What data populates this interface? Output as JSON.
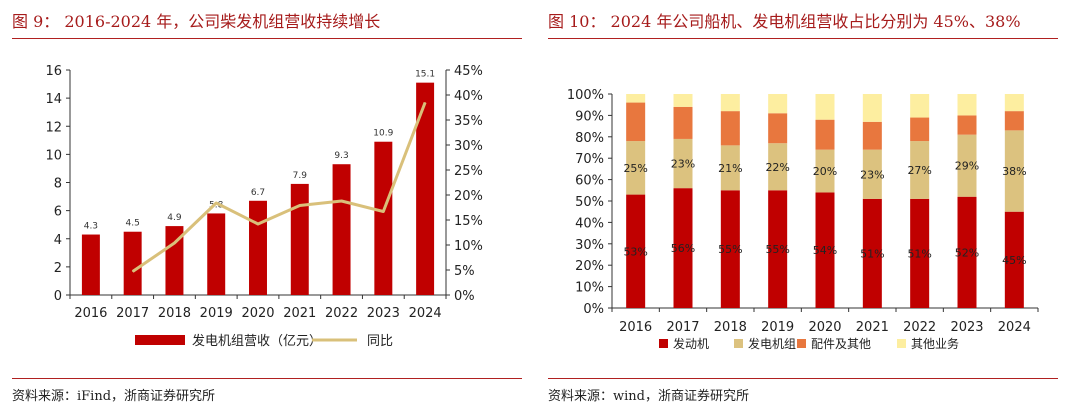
{
  "left_panel": {
    "title": "图 9： 2016-2024 年，公司柴发机组营收持续增长",
    "source": "资料来源：iFind，浙商证券研究所"
  },
  "right_panel": {
    "title": "图 10： 2024 年公司船机、发电机组营收占比分别为 45%、38%",
    "source": "资料来源：wind，浙商证券研究所"
  },
  "colors": {
    "accent": "#a61b1b",
    "bar_red": "#c00000",
    "line_tan": "#d9c07a",
    "seg_tan": "#dcc27f",
    "seg_orange": "#e8773e",
    "seg_yellow": "#fdeea0"
  },
  "chart_data": [
    {
      "type": "bar",
      "title": "2016-2024 年，公司柴发机组营收持续增长",
      "categories": [
        "2016",
        "2017",
        "2018",
        "2019",
        "2020",
        "2021",
        "2022",
        "2023",
        "2024"
      ],
      "series": [
        {
          "name": "发电机组营收（亿元）",
          "type": "bar",
          "axis": "left",
          "values": [
            4.3,
            4.5,
            4.9,
            5.8,
            6.7,
            7.9,
            9.3,
            10.9,
            15.1
          ],
          "labels": [
            "4.3",
            "4.5",
            "4.9",
            "5.8",
            "6.7",
            "7.9",
            "9.3",
            "10.9",
            "15.1"
          ]
        },
        {
          "name": "同比",
          "type": "line",
          "axis": "right",
          "values": [
            null,
            4.7,
            10.4,
            18.4,
            14.2,
            17.9,
            18.8,
            16.7,
            38.5
          ]
        }
      ],
      "ylim": [
        0,
        16
      ],
      "yticks": [
        "0",
        "2",
        "4",
        "6",
        "8",
        "10",
        "12",
        "14",
        "16"
      ],
      "y2lim": [
        0,
        45
      ],
      "y2ticks": [
        "0%",
        "5%",
        "10%",
        "15%",
        "20%",
        "25%",
        "30%",
        "35%",
        "40%",
        "45%"
      ],
      "legend": [
        "发电机组营收（亿元）",
        "同比"
      ],
      "legend_position": "bottom"
    },
    {
      "type": "bar",
      "stacked": true,
      "title": "2024 年公司船机、发电机组营收占比分别为 45%、38%",
      "categories": [
        "2016",
        "2017",
        "2018",
        "2019",
        "2020",
        "2021",
        "2022",
        "2023",
        "2024"
      ],
      "series": [
        {
          "name": "发动机",
          "values": [
            53,
            56,
            55,
            55,
            54,
            51,
            51,
            52,
            45
          ],
          "labels": [
            "53%",
            "56%",
            "55%",
            "55%",
            "54%",
            "51%",
            "51%",
            "52%",
            "45%"
          ]
        },
        {
          "name": "发电机组",
          "values": [
            25,
            23,
            21,
            22,
            20,
            23,
            27,
            29,
            38
          ],
          "labels": [
            "25%",
            "23%",
            "21%",
            "22%",
            "20%",
            "23%",
            "27%",
            "29%",
            "38%"
          ]
        },
        {
          "name": "配件及其他",
          "values": [
            18,
            15,
            16,
            14,
            14,
            13,
            11,
            9,
            9
          ]
        },
        {
          "name": "其他业务",
          "values": [
            4,
            6,
            8,
            9,
            12,
            13,
            11,
            10,
            8
          ]
        }
      ],
      "ylim": [
        0,
        100
      ],
      "yticks": [
        "0%",
        "10%",
        "20%",
        "30%",
        "40%",
        "50%",
        "60%",
        "70%",
        "80%",
        "90%",
        "100%"
      ],
      "legend": [
        "发动机",
        "发电机组",
        "配件及其他",
        "其他业务"
      ],
      "legend_position": "bottom"
    }
  ]
}
